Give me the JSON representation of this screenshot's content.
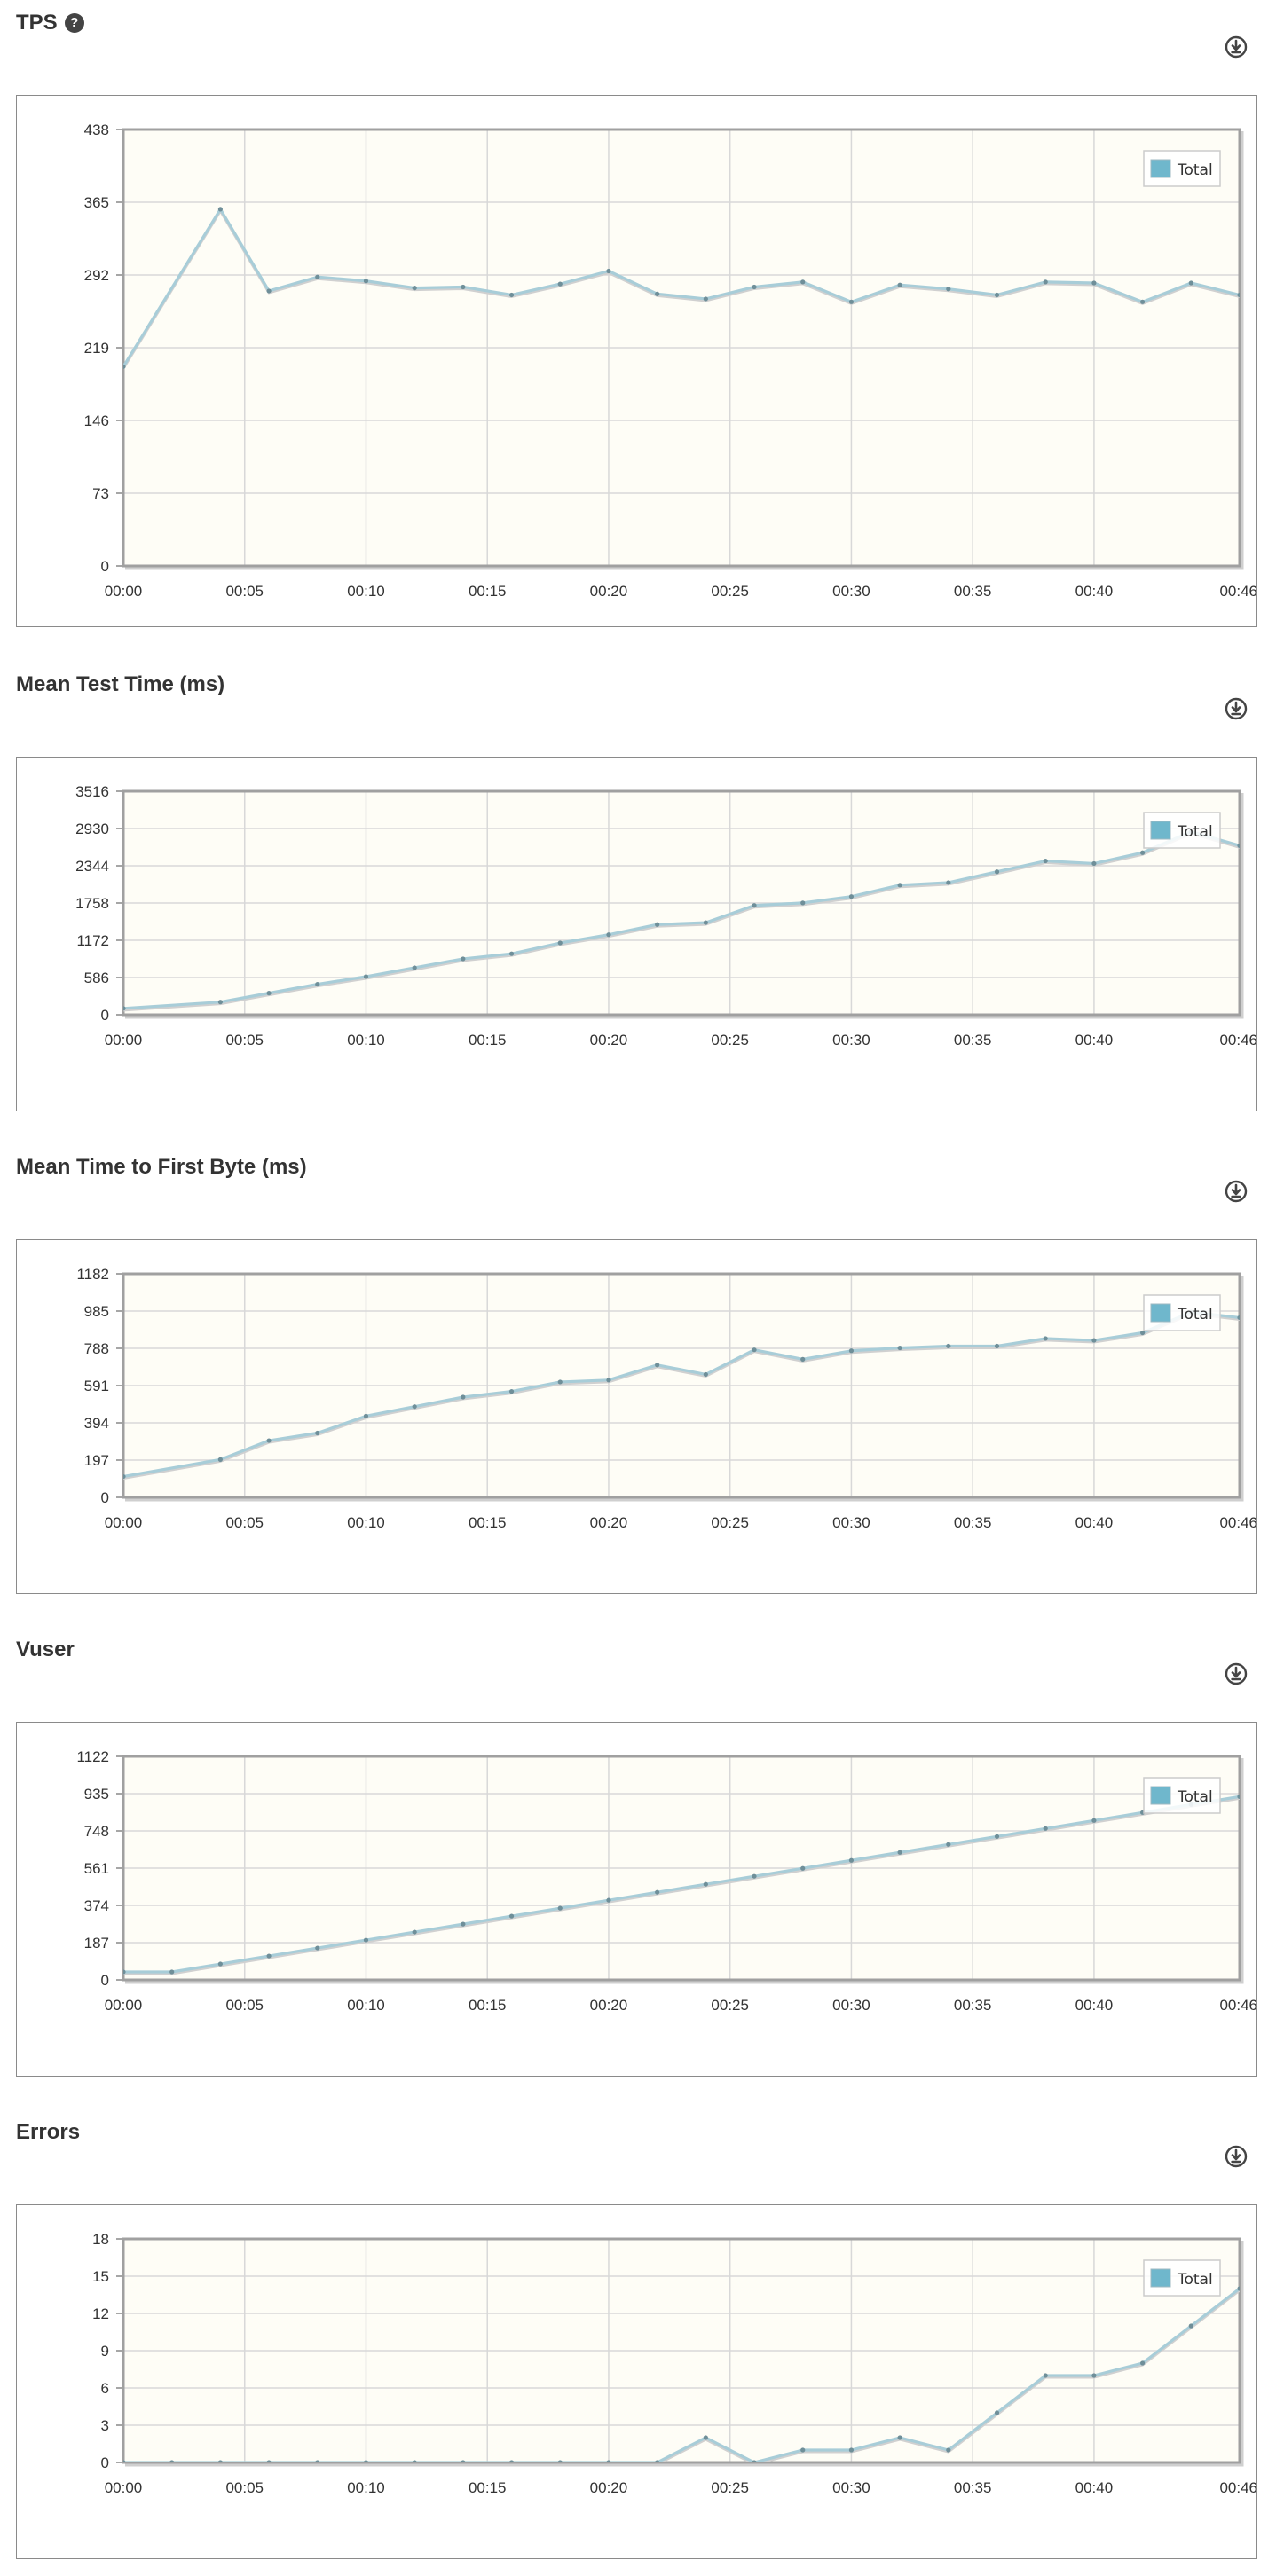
{
  "chart_data": [
    {
      "type": "line",
      "title": "TPS",
      "has_help": true,
      "xticks": [
        "00:00",
        "00:05",
        "00:10",
        "00:15",
        "00:20",
        "00:25",
        "00:30",
        "00:35",
        "00:40",
        "00:46"
      ],
      "xlim_seconds": [
        0,
        46
      ],
      "ylim": [
        0,
        438
      ],
      "yticks": [
        0,
        73,
        146,
        219,
        292,
        365,
        438
      ],
      "grid": true,
      "legend": {
        "position": "top-right",
        "label": "Total",
        "color": "#6fb7cc"
      },
      "series": [
        {
          "name": "Total",
          "x": [
            "00:00",
            "00:04",
            "00:06",
            "00:08",
            "00:10",
            "00:12",
            "00:14",
            "00:16",
            "00:18",
            "00:20",
            "00:22",
            "00:24",
            "00:26",
            "00:28",
            "00:30",
            "00:32",
            "00:34",
            "00:36",
            "00:38",
            "00:40",
            "00:42",
            "00:44",
            "00:46"
          ],
          "values": [
            200,
            358,
            276,
            290,
            286,
            279,
            280,
            272,
            283,
            296,
            273,
            268,
            280,
            285,
            265,
            282,
            278,
            272,
            285,
            284,
            265,
            284,
            272
          ]
        }
      ]
    },
    {
      "type": "line",
      "title": "Mean Test Time (ms)",
      "has_help": false,
      "xticks": [
        "00:00",
        "00:05",
        "00:10",
        "00:15",
        "00:20",
        "00:25",
        "00:30",
        "00:35",
        "00:40",
        "00:46"
      ],
      "xlim_seconds": [
        0,
        46
      ],
      "ylim": [
        0,
        3516
      ],
      "yticks": [
        0,
        586,
        1172,
        1758,
        2344,
        2930,
        3516
      ],
      "grid": true,
      "legend": {
        "position": "top-right",
        "label": "Total",
        "color": "#6fb7cc"
      },
      "series": [
        {
          "name": "Total",
          "x": [
            "00:00",
            "00:04",
            "00:06",
            "00:08",
            "00:10",
            "00:12",
            "00:14",
            "00:16",
            "00:18",
            "00:20",
            "00:22",
            "00:24",
            "00:26",
            "00:28",
            "00:30",
            "00:32",
            "00:34",
            "00:36",
            "00:38",
            "00:40",
            "00:42",
            "00:44",
            "00:46"
          ],
          "values": [
            100,
            200,
            340,
            480,
            600,
            740,
            880,
            960,
            1130,
            1260,
            1420,
            1450,
            1720,
            1760,
            1860,
            2040,
            2080,
            2250,
            2420,
            2380,
            2550,
            2880,
            2660
          ]
        }
      ]
    },
    {
      "type": "line",
      "title": "Mean Time to First Byte (ms)",
      "has_help": false,
      "xticks": [
        "00:00",
        "00:05",
        "00:10",
        "00:15",
        "00:20",
        "00:25",
        "00:30",
        "00:35",
        "00:40",
        "00:46"
      ],
      "xlim_seconds": [
        0,
        46
      ],
      "ylim": [
        0,
        1182
      ],
      "yticks": [
        0,
        197,
        394,
        591,
        788,
        985,
        1182
      ],
      "grid": true,
      "legend": {
        "position": "top-right",
        "label": "Total",
        "color": "#6fb7cc"
      },
      "series": [
        {
          "name": "Total",
          "x": [
            "00:00",
            "00:04",
            "00:06",
            "00:08",
            "00:10",
            "00:12",
            "00:14",
            "00:16",
            "00:18",
            "00:20",
            "00:22",
            "00:24",
            "00:26",
            "00:28",
            "00:30",
            "00:32",
            "00:34",
            "00:36",
            "00:38",
            "00:40",
            "00:42",
            "00:44",
            "00:46"
          ],
          "values": [
            110,
            200,
            300,
            340,
            430,
            480,
            530,
            560,
            610,
            620,
            700,
            650,
            780,
            730,
            775,
            790,
            800,
            800,
            840,
            830,
            870,
            980,
            950
          ]
        }
      ]
    },
    {
      "type": "line",
      "title": "Vuser",
      "has_help": false,
      "xticks": [
        "00:00",
        "00:05",
        "00:10",
        "00:15",
        "00:20",
        "00:25",
        "00:30",
        "00:35",
        "00:40",
        "00:46"
      ],
      "xlim_seconds": [
        0,
        46
      ],
      "ylim": [
        0,
        1122
      ],
      "yticks": [
        0,
        187,
        374,
        561,
        748,
        935,
        1122
      ],
      "grid": true,
      "legend": {
        "position": "top-right",
        "label": "Total",
        "color": "#6fb7cc"
      },
      "series": [
        {
          "name": "Total",
          "x": [
            "00:00",
            "00:02",
            "00:04",
            "00:06",
            "00:08",
            "00:10",
            "00:12",
            "00:14",
            "00:16",
            "00:18",
            "00:20",
            "00:22",
            "00:24",
            "00:26",
            "00:28",
            "00:30",
            "00:32",
            "00:34",
            "00:36",
            "00:38",
            "00:40",
            "00:42",
            "00:44",
            "00:46"
          ],
          "values": [
            40,
            40,
            80,
            120,
            160,
            200,
            240,
            280,
            320,
            360,
            400,
            440,
            480,
            520,
            560,
            600,
            640,
            680,
            720,
            760,
            800,
            840,
            880,
            920
          ]
        }
      ]
    },
    {
      "type": "line",
      "title": "Errors",
      "has_help": false,
      "xticks": [
        "00:00",
        "00:05",
        "00:10",
        "00:15",
        "00:20",
        "00:25",
        "00:30",
        "00:35",
        "00:40",
        "00:46"
      ],
      "xlim_seconds": [
        0,
        46
      ],
      "ylim": [
        0,
        18
      ],
      "yticks": [
        0,
        3,
        6,
        9,
        12,
        15,
        18
      ],
      "grid": true,
      "legend": {
        "position": "top-right",
        "label": "Total",
        "color": "#6fb7cc"
      },
      "series": [
        {
          "name": "Total",
          "x": [
            "00:00",
            "00:02",
            "00:04",
            "00:06",
            "00:08",
            "00:10",
            "00:12",
            "00:14",
            "00:16",
            "00:18",
            "00:20",
            "00:22",
            "00:24",
            "00:26",
            "00:28",
            "00:30",
            "00:32",
            "00:34",
            "00:36",
            "00:38",
            "00:40",
            "00:42",
            "00:44",
            "00:46"
          ],
          "values": [
            0,
            0,
            0,
            0,
            0,
            0,
            0,
            0,
            0,
            0,
            0,
            0,
            2,
            0,
            1,
            1,
            2,
            1,
            4,
            7,
            7,
            8,
            11,
            14
          ]
        }
      ]
    }
  ],
  "icons": {
    "help": "question-circle-icon",
    "download": "download-circle-icon"
  },
  "colors": {
    "line": "#a8cdd8",
    "marker": "#6f8f99",
    "plot_bg": "#fefdf6",
    "grid": "#d8d8d8",
    "frame": "#a0a0a0"
  }
}
